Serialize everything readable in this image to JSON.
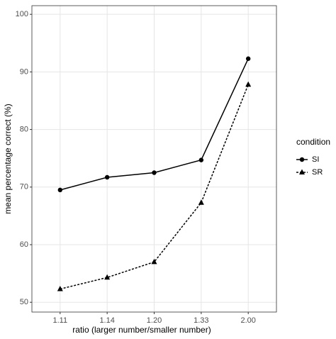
{
  "chart_data": {
    "type": "line",
    "x_label": "ratio (larger number/smaller number)",
    "y_label": "mean percentage correct (%)",
    "categories": [
      "1.11",
      "1.14",
      "1.20",
      "1.33",
      "2.00"
    ],
    "series": [
      {
        "name": "SI",
        "color": "#000000",
        "marker": "circle",
        "linestyle": "solid",
        "values": [
          69.5,
          71.7,
          72.5,
          74.7,
          92.3
        ]
      },
      {
        "name": "SR",
        "color": "#000000",
        "marker": "triangle",
        "linestyle": "dashed",
        "values": [
          52.3,
          54.3,
          57.0,
          67.3,
          87.8
        ]
      }
    ],
    "ylim": [
      48.3,
      101.5
    ],
    "yticks": [
      50,
      60,
      70,
      80,
      90,
      100
    ],
    "grid": true,
    "legend_title": "condition",
    "legend_position": "right"
  }
}
